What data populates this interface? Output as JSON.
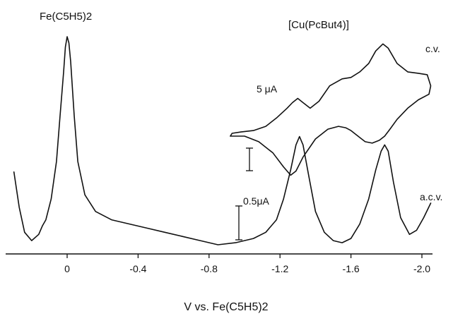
{
  "chart_data": {
    "type": "line",
    "xlabel": "V vs. Fe(C5H5)2",
    "xlim": [
      0.3,
      -2.08
    ],
    "grid": false,
    "ticks": [
      {
        "v": 0,
        "label": "0"
      },
      {
        "v": -0.4,
        "label": "-0.4"
      },
      {
        "v": -0.8,
        "label": "-0.8"
      },
      {
        "v": -1.2,
        "label": "-1.2"
      },
      {
        "v": -1.6,
        "label": "-1.6"
      },
      {
        "v": -2.0,
        "label": "-2.0"
      }
    ],
    "annotations": {
      "ferrocene": "Fe(C5H5)2",
      "complex": "[Cu(PcBut4)]",
      "cv": "c.v.",
      "acv": "a.c.v.",
      "scale_cv": "5 μA",
      "scale_acv": "0.5μA"
    },
    "series": [
      {
        "name": "a.c.v.",
        "x": [
          0.3,
          0.27,
          0.24,
          0.2,
          0.16,
          0.14,
          0.12,
          0.09,
          0.06,
          0.04,
          0.02,
          0.01,
          0.0,
          -0.01,
          -0.02,
          -0.04,
          -0.06,
          -0.1,
          -0.16,
          -0.25,
          -0.35,
          -0.45,
          -0.55,
          -0.65,
          -0.75,
          -0.85,
          -0.95,
          -1.05,
          -1.12,
          -1.18,
          -1.22,
          -1.26,
          -1.29,
          -1.31,
          -1.33,
          -1.36,
          -1.4,
          -1.45,
          -1.5,
          -1.55,
          -1.6,
          -1.65,
          -1.7,
          -1.74,
          -1.77,
          -1.79,
          -1.81,
          -1.84,
          -1.88,
          -1.93,
          -1.97,
          -2.01,
          -2.05
        ],
        "y": [
          0.35,
          0.18,
          0.06,
          0.02,
          0.05,
          0.09,
          0.12,
          0.22,
          0.4,
          0.62,
          0.83,
          0.95,
          1.0,
          0.97,
          0.88,
          0.62,
          0.4,
          0.24,
          0.16,
          0.12,
          0.1,
          0.08,
          0.06,
          0.04,
          0.02,
          0.0,
          0.01,
          0.03,
          0.06,
          0.12,
          0.22,
          0.36,
          0.48,
          0.52,
          0.48,
          0.34,
          0.16,
          0.06,
          0.02,
          0.01,
          0.03,
          0.1,
          0.22,
          0.36,
          0.45,
          0.48,
          0.45,
          0.3,
          0.13,
          0.05,
          0.07,
          0.13,
          0.2
        ]
      },
      {
        "name": "c.v.",
        "x": [
          -0.92,
          -1.0,
          -1.08,
          -1.16,
          -1.22,
          -1.26,
          -1.29,
          -1.33,
          -1.4,
          -1.47,
          -1.53,
          -1.57,
          -1.6,
          -1.64,
          -1.68,
          -1.72,
          -1.76,
          -1.79,
          -1.82,
          -1.86,
          -1.92,
          -1.98,
          -2.04,
          -2.05,
          -2.03,
          -1.98,
          -1.92,
          -1.86,
          -1.81,
          -1.78,
          -1.74,
          -1.7,
          -1.65,
          -1.6,
          -1.55,
          -1.48,
          -1.42,
          -1.37,
          -1.33,
          -1.3,
          -1.27,
          -1.24,
          -1.18,
          -1.12,
          -1.05,
          -0.98,
          -0.93,
          -0.92
        ],
        "y": [
          0.0,
          0.0,
          -0.04,
          -0.12,
          -0.22,
          -0.28,
          -0.25,
          -0.15,
          -0.02,
          0.05,
          0.07,
          0.06,
          0.04,
          0.0,
          -0.04,
          -0.05,
          -0.03,
          0.0,
          0.05,
          0.12,
          0.2,
          0.26,
          0.3,
          0.36,
          0.44,
          0.45,
          0.46,
          0.52,
          0.63,
          0.66,
          0.61,
          0.52,
          0.46,
          0.42,
          0.41,
          0.36,
          0.25,
          0.2,
          0.24,
          0.27,
          0.24,
          0.2,
          0.13,
          0.07,
          0.04,
          0.03,
          0.02,
          0.0
        ]
      }
    ]
  }
}
